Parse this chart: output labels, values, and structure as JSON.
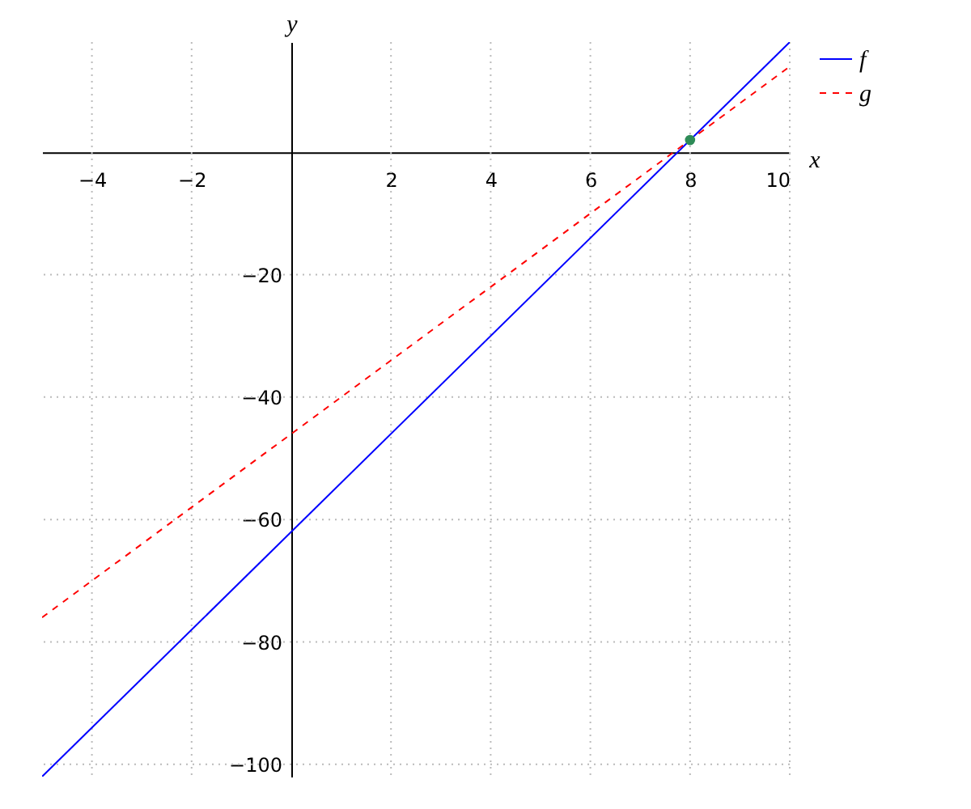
{
  "chart_data": {
    "type": "line",
    "xlabel": "x",
    "ylabel": "y",
    "xlim": [
      -5,
      10
    ],
    "ylim": [
      -102,
      18
    ],
    "xticks": [
      -4,
      -2,
      2,
      4,
      6,
      8,
      10
    ],
    "yticks": [
      -100,
      -80,
      -60,
      -40,
      -20
    ],
    "grid": true,
    "legend": "top right",
    "series": [
      {
        "name": "f",
        "color": "#0000ff",
        "x": [
          -5,
          10
        ],
        "values": [
          -102,
          18
        ],
        "line_style": "solid"
      },
      {
        "name": "g",
        "color": "#ff0000",
        "x": [
          -5,
          10
        ],
        "values": [
          -76,
          14
        ],
        "line_style": "dashed"
      },
      {
        "type": "scatter",
        "color": "#2e8b57",
        "x": [
          8
        ],
        "values": [
          2
        ],
        "marker": "circle"
      }
    ]
  }
}
